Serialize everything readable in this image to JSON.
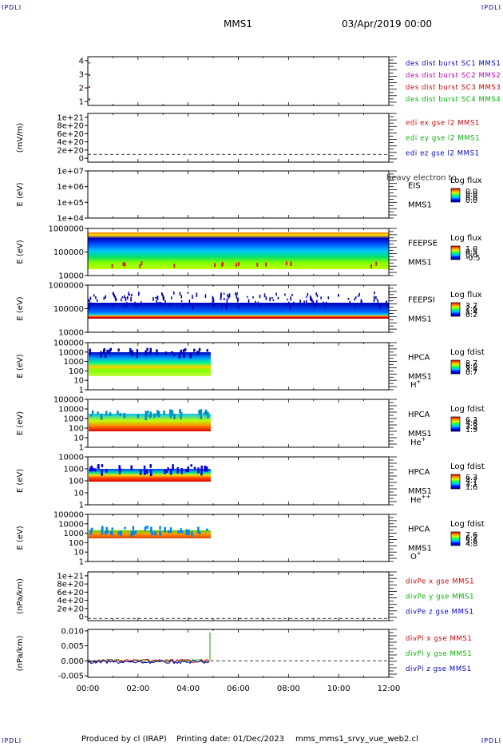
{
  "header": {
    "corner_label": "IPDLI",
    "spacecraft": "MMS1",
    "date_time": "03/Apr/2019 00:00"
  },
  "footer": {
    "produced_by": "Produced by cl (IRAP)",
    "printing_date": "Printing date: 01/Dec/2023",
    "filename": "mms_mms1_srvy_vue_web2.cl"
  },
  "colors": {
    "mms1": "#0000c0",
    "mms2": "#c000c0",
    "mms3": "#d00000",
    "mms4": "#00b000",
    "x": "#d00000",
    "y": "#00b000",
    "z": "#0000c0"
  },
  "chart_data": {
    "type": "multi-panel time series",
    "x_ticks": [
      "00:00",
      "02:00",
      "04:00",
      "06:00",
      "08:00",
      "10:00",
      "12:00"
    ],
    "xlim_hours": [
      0,
      12
    ],
    "data_end_hours": 4.9,
    "panels": [
      {
        "id": "des-dist",
        "type": "line",
        "ylabel": "",
        "ylim": [
          0.5,
          4.5
        ],
        "y_ticks": [
          "4",
          "3",
          "2",
          "1"
        ],
        "legend": [
          {
            "text": "des dist burst SC1 MMS1",
            "color": "#0000c0"
          },
          {
            "text": "des dist burst SC2 MMS2",
            "color": "#c000c0"
          },
          {
            "text": "des dist burst SC3 MMS3",
            "color": "#d00000"
          },
          {
            "text": "des dist burst SC4 MMS4",
            "color": "#00b000"
          }
        ]
      },
      {
        "id": "edi-e",
        "type": "line",
        "ylabel": "(mV/m)",
        "ylim": [
          -2e+20,
          1.05e+21
        ],
        "y_ticks": [
          "1e+21",
          "8e+20",
          "6e+20",
          "4e+20",
          "2e+20",
          "0"
        ],
        "legend": [
          {
            "text": "edi ex gse l2 MMS1",
            "color": "#d00000"
          },
          {
            "text": "edi ey gse l2 MMS1",
            "color": "#00b000"
          },
          {
            "text": "edi ez gse l2 MMS1",
            "color": "#0000c0"
          }
        ]
      },
      {
        "id": "eis",
        "type": "heatmap",
        "ylabel": "E (eV)",
        "y_ticks": [
          "1e+07",
          "1e+06",
          "1e+05",
          "1e+04"
        ],
        "instrument": [
          "EIS",
          "MMS1"
        ],
        "overlay_text": "heavy electron to",
        "colorbar_title": "Log flux",
        "colorbar_ticks": [
          "0.0",
          "0.0",
          "0.0",
          "0.0"
        ]
      },
      {
        "id": "feepse",
        "type": "heatmap",
        "ylabel": "E (eV)",
        "y_ticks": [
          "1000000",
          "100000",
          "10000"
        ],
        "instrument": [
          "FEEPSE",
          "MMS1"
        ],
        "colorbar_title": "Log flux",
        "colorbar_ticks": [
          "1.0",
          "0.5",
          "0.0",
          "-0.5"
        ]
      },
      {
        "id": "feepsi",
        "type": "heatmap",
        "ylabel": "E (eV)",
        "y_ticks": [
          "1000000",
          "100000",
          "10000"
        ],
        "instrument": [
          "FEEPSI",
          "MMS1"
        ],
        "colorbar_title": "Log flux",
        "colorbar_ticks": [
          "3.7",
          "2.6",
          "1.4",
          "0.2"
        ]
      },
      {
        "id": "hpca-h",
        "type": "heatmap",
        "ylabel": "E (eV)",
        "y_ticks": [
          "100000",
          "10000",
          "1000",
          "100",
          "10",
          "1"
        ],
        "instrument": [
          "HPCA",
          "MMS1"
        ],
        "species": "H",
        "species_sup": "+",
        "colorbar_title": "Log fdist",
        "colorbar_ticks": [
          "8.7",
          "6.0",
          "3.4",
          "0.7"
        ]
      },
      {
        "id": "hpca-he",
        "type": "heatmap",
        "ylabel": "E (eV)",
        "y_ticks": [
          "100000",
          "10000",
          "1000",
          "100",
          "10",
          "1"
        ],
        "instrument": [
          "HPCA",
          "MMS1"
        ],
        "species": "He",
        "species_sup": "+",
        "colorbar_title": "Log fdist",
        "colorbar_ticks": [
          "6.3",
          "4.8",
          "3.3",
          "1.9"
        ]
      },
      {
        "id": "hpca-he2",
        "type": "heatmap",
        "ylabel": "E (eV)",
        "y_ticks": [
          "10000",
          "1000",
          "100",
          "10",
          "1"
        ],
        "instrument": [
          "HPCA",
          "MMS1"
        ],
        "species": "He",
        "species_sup": "++",
        "colorbar_title": "Log fdist",
        "colorbar_ticks": [
          "6.3",
          "4.7",
          "3.1",
          "1.6"
        ]
      },
      {
        "id": "hpca-o",
        "type": "heatmap",
        "ylabel": "E (eV)",
        "y_ticks": [
          "100000",
          "10000",
          "1000",
          "100",
          "10",
          "1"
        ],
        "instrument": [
          "HPCA",
          "MMS1"
        ],
        "species": "O",
        "species_sup": "+",
        "colorbar_title": "Log fdist",
        "colorbar_ticks": [
          "7.6",
          "6.7",
          "5.8",
          "4.8"
        ]
      },
      {
        "id": "divpe",
        "type": "line",
        "ylabel": "(nPa/km)",
        "ylim": [
          -5e+19,
          1.05e+21
        ],
        "y_ticks": [
          "1e+21",
          "8e+20",
          "6e+20",
          "4e+20",
          "2e+20",
          "0"
        ],
        "legend": [
          {
            "text": "divPe x gse MMS1",
            "color": "#d00000"
          },
          {
            "text": "divPe y gse MMS1",
            "color": "#00b000"
          },
          {
            "text": "divPe z gse MMS1",
            "color": "#0000c0"
          }
        ]
      },
      {
        "id": "divpi",
        "type": "line",
        "ylabel": "(nPa/km)",
        "ylim": [
          -0.0055,
          0.0105
        ],
        "y_ticks": [
          "0.010",
          "0.005",
          "0.000",
          "-0.005"
        ],
        "y_tick_values": [
          0.01,
          0.005,
          0.0,
          -0.005
        ],
        "legend": [
          {
            "text": "divPi x gse MMS1",
            "color": "#d00000"
          },
          {
            "text": "divPi y gse MMS1",
            "color": "#00b000"
          },
          {
            "text": "divPi z gse MMS1",
            "color": "#0000c0"
          }
        ]
      }
    ]
  }
}
